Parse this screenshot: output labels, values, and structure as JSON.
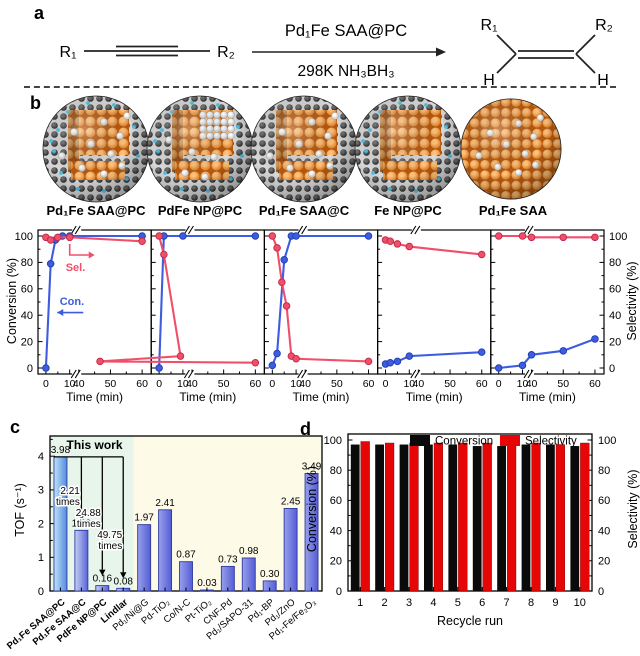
{
  "panels": {
    "a": "a",
    "b": "b",
    "c": "c",
    "d": "d"
  },
  "panel_a": {
    "r1": "R₁",
    "r2": "R₂",
    "catalyst": "Pd₁Fe SAA@PC",
    "conditions": "298K  NH₃BH₃",
    "product": {
      "r1": "R₁",
      "r2": "R₂",
      "h1": "H",
      "h2": "H"
    }
  },
  "panel_b": {
    "spheres": [
      {
        "label": "Pd₁Fe SAA@PC",
        "cage": true,
        "p_doped": true,
        "white": "single"
      },
      {
        "label": "PdFe NP@PC",
        "cage": true,
        "p_doped": true,
        "white": "cluster"
      },
      {
        "label": "Pd₁Fe SAA@C",
        "cage": true,
        "p_doped": false,
        "white": "single"
      },
      {
        "label": "Fe NP@PC",
        "cage": true,
        "p_doped": true,
        "white": "none"
      },
      {
        "label": "Pd₁Fe SAA",
        "cage": false,
        "p_doped": false,
        "white": "single"
      }
    ],
    "ylabel_left": "Conversion (%)",
    "ylabel_right": "Selectivity (%)",
    "xlabel": "Time (min)",
    "xticks": [
      "0",
      "10",
      "40",
      "50",
      "60"
    ],
    "yticks": [
      "0",
      "20",
      "40",
      "60",
      "80",
      "100"
    ],
    "con_label": "Con.",
    "sel_label": "Sel."
  },
  "panel_c": {
    "title": "This work",
    "ylabel": "TOF (s⁻¹)"
  },
  "panel_d": {
    "ylabel_left": "Conversion (%)",
    "ylabel_right": "Selectivity (%)"
  },
  "colors": {
    "conversion_line": "#3d5ce0",
    "conversion_edge": "#1e3cae",
    "selectivity_line": "#f04f6a",
    "selectivity_edge": "#c22747",
    "bar_black": "#0a0a0a",
    "bar_red": "#e60606",
    "this_work_bg": "#e7f5ea",
    "others_bg": "#fdfbe7",
    "carbon": "#2e2e2e",
    "orange": "#ef8f2d",
    "phosphorus": "#49c4ec",
    "pd_white": "#f2f2f2"
  },
  "chart_data": [
    {
      "id": "b1",
      "type": "line",
      "title": "Pd₁Fe SAA@PC",
      "xlabel": "Time (min)",
      "ylim": [
        0,
        100
      ],
      "axis_break": [
        10,
        40
      ],
      "series": [
        {
          "name": "Conversion",
          "points": [
            [
              0,
              0
            ],
            [
              2,
              79
            ],
            [
              4,
              97
            ],
            [
              7,
              100
            ],
            [
              10,
              100
            ],
            [
              60,
              100
            ]
          ]
        },
        {
          "name": "Selectivity",
          "points": [
            [
              0,
              99
            ],
            [
              2,
              97
            ],
            [
              5,
              99
            ],
            [
              10,
              99
            ],
            [
              60,
              96
            ]
          ]
        }
      ]
    },
    {
      "id": "b2",
      "type": "line",
      "title": "PdFe NP@PC",
      "xlabel": "Time (min)",
      "ylim": [
        0,
        100
      ],
      "axis_break": [
        10,
        40
      ],
      "series": [
        {
          "name": "Conversion",
          "points": [
            [
              0,
              0
            ],
            [
              2,
              100
            ],
            [
              10,
              100
            ],
            [
              60,
              100
            ]
          ]
        },
        {
          "name": "Selectivity",
          "points": [
            [
              0,
              100
            ],
            [
              2,
              86
            ],
            [
              9,
              9
            ],
            [
              11,
              5
            ],
            [
              60,
              4
            ]
          ]
        }
      ]
    },
    {
      "id": "b3",
      "type": "line",
      "title": "Pd₁Fe SAA@C",
      "xlabel": "Time (min)",
      "ylim": [
        0,
        100
      ],
      "axis_break": [
        10,
        40
      ],
      "series": [
        {
          "name": "Conversion",
          "points": [
            [
              0,
              2
            ],
            [
              2,
              11
            ],
            [
              5,
              82
            ],
            [
              8,
              100
            ],
            [
              10,
              100
            ],
            [
              60,
              100
            ]
          ]
        },
        {
          "name": "Selectivity",
          "points": [
            [
              0,
              100
            ],
            [
              2,
              91
            ],
            [
              4,
              65
            ],
            [
              6,
              47
            ],
            [
              8,
              9
            ],
            [
              10,
              7
            ],
            [
              60,
              5
            ]
          ]
        }
      ]
    },
    {
      "id": "b4",
      "type": "line",
      "title": "Fe NP@PC",
      "xlabel": "Time (min)",
      "ylim": [
        0,
        100
      ],
      "axis_break": [
        10,
        40
      ],
      "series": [
        {
          "name": "Conversion",
          "points": [
            [
              0,
              3
            ],
            [
              2,
              4
            ],
            [
              5,
              5
            ],
            [
              10,
              9
            ],
            [
              60,
              12
            ]
          ]
        },
        {
          "name": "Selectivity",
          "points": [
            [
              0,
              97
            ],
            [
              2,
              96
            ],
            [
              5,
              94
            ],
            [
              10,
              92
            ],
            [
              60,
              86
            ]
          ]
        }
      ]
    },
    {
      "id": "b5",
      "type": "line",
      "title": "Pd₁Fe SAA",
      "xlabel": "Time (min)",
      "ylim": [
        0,
        100
      ],
      "axis_break": [
        10,
        40
      ],
      "series": [
        {
          "name": "Conversion",
          "points": [
            [
              0,
              0
            ],
            [
              10,
              2
            ],
            [
              40,
              10
            ],
            [
              50,
              13
            ],
            [
              60,
              22
            ]
          ]
        },
        {
          "name": "Selectivity",
          "points": [
            [
              0,
              100
            ],
            [
              10,
              100
            ],
            [
              40,
              99
            ],
            [
              50,
              99
            ],
            [
              60,
              99
            ]
          ]
        }
      ]
    },
    {
      "id": "c",
      "type": "bar",
      "title": "This work",
      "ylabel": "TOF (s⁻¹)",
      "ylim": [
        0,
        4.6
      ],
      "yticks": [
        0,
        1,
        2,
        3,
        4
      ],
      "this_work_count": 4,
      "categories": [
        "Pd₁Fe SAA@PC",
        "Pd₁Fe SAA@C",
        "PdFe NP@PC",
        "Lindlar",
        "Pd₁/Ni@G",
        "Pd-TiO₂",
        "Co/N-C",
        "Pt-TiO₂",
        "CNF-Pd",
        "Pd₁/SAPO-31",
        "Pd₁-BP",
        "Pd₁/ZnO",
        "Pd₁-Fe/Fe₂O₃"
      ],
      "values": [
        3.98,
        1.8,
        0.16,
        0.08,
        1.97,
        2.41,
        0.87,
        0.03,
        0.73,
        0.98,
        0.3,
        2.45,
        3.49
      ],
      "annotations": [
        {
          "text": "2.21 times",
          "target_index": 1
        },
        {
          "text": "24.88 times",
          "target_index": 2
        },
        {
          "text": "49.75 times",
          "target_index": 3
        }
      ]
    },
    {
      "id": "d",
      "type": "grouped-bar",
      "xlabel": "Recycle run",
      "ylim": [
        0,
        100
      ],
      "yticks": [
        0,
        20,
        40,
        60,
        80,
        100
      ],
      "categories": [
        "1",
        "2",
        "3",
        "4",
        "5",
        "6",
        "7",
        "8",
        "9",
        "10"
      ],
      "series": [
        {
          "name": "Conversion",
          "color": "#0a0a0a",
          "values": [
            97,
            97,
            97,
            97,
            97,
            96,
            96,
            97,
            97,
            96
          ]
        },
        {
          "name": "Selectivity",
          "color": "#e60606",
          "values": [
            99,
            98,
            98,
            98,
            98,
            98,
            97,
            98,
            97,
            98
          ]
        }
      ]
    }
  ]
}
